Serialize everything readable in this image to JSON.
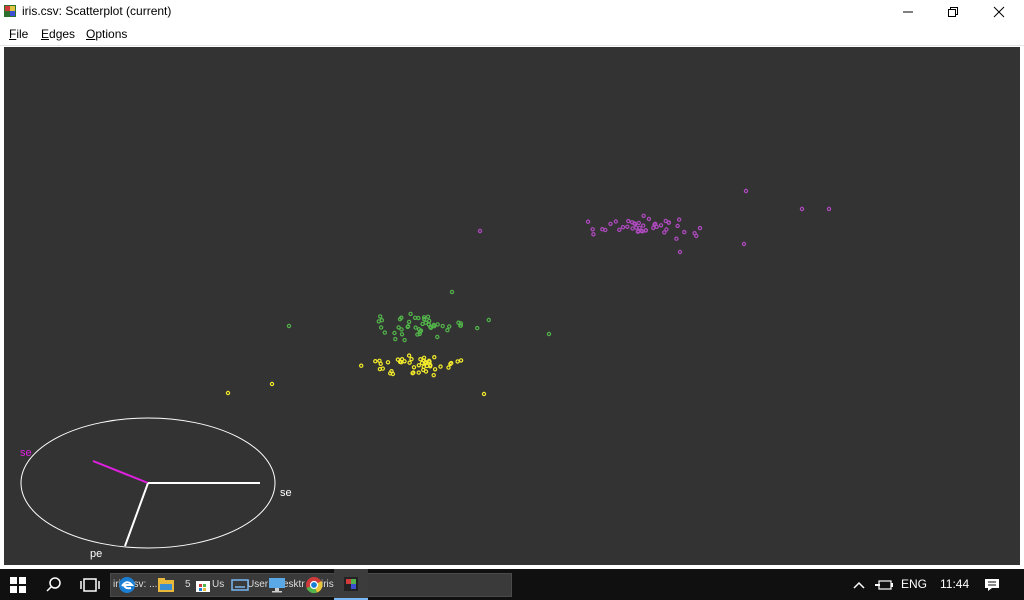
{
  "window": {
    "title": "iris.csv: Scatterplot (current)",
    "icon": "ggobi-cube-icon",
    "buttons": [
      "minimize-icon",
      "maximize-icon",
      "close-icon"
    ]
  },
  "menu": {
    "file": {
      "mnemonic": "F",
      "rest": "ile"
    },
    "edges": {
      "mnemonic": "E",
      "rest": "dges"
    },
    "options": {
      "mnemonic": "O",
      "rest": "ptions"
    }
  },
  "plot": {
    "background": "#333333",
    "colors": {
      "purple": "#b04ac0",
      "green": "#52b44a",
      "yellow": "#f2ea2a",
      "axis": "#ffffff",
      "highlight_axis": "#e020e0"
    },
    "axes": {
      "label_highlight": "se",
      "label_right": "se",
      "label_bottom": "pe"
    },
    "point_groups": [
      {
        "name": "purple",
        "count": 50
      },
      {
        "name": "green",
        "count": 50
      },
      {
        "name": "yellow",
        "count": 50
      }
    ]
  },
  "taskbar": {
    "task_button_text": "iris.csv: ...",
    "task_fragment_1": "5",
    "task_fragment_2": "Us",
    "task_fragment_3": "User",
    "task_fragment_4": "esktr",
    "task_fragment_5": "iris",
    "icons": [
      "windows-start-icon",
      "search-icon",
      "task-view-icon",
      "edge-browser-icon",
      "file-explorer-icon",
      "store-icon",
      "keyboard-icon",
      "remote-desktop-icon",
      "chrome-icon",
      "ggobi-icon"
    ],
    "tray": {
      "language": "ENG",
      "time": "11:44"
    }
  }
}
